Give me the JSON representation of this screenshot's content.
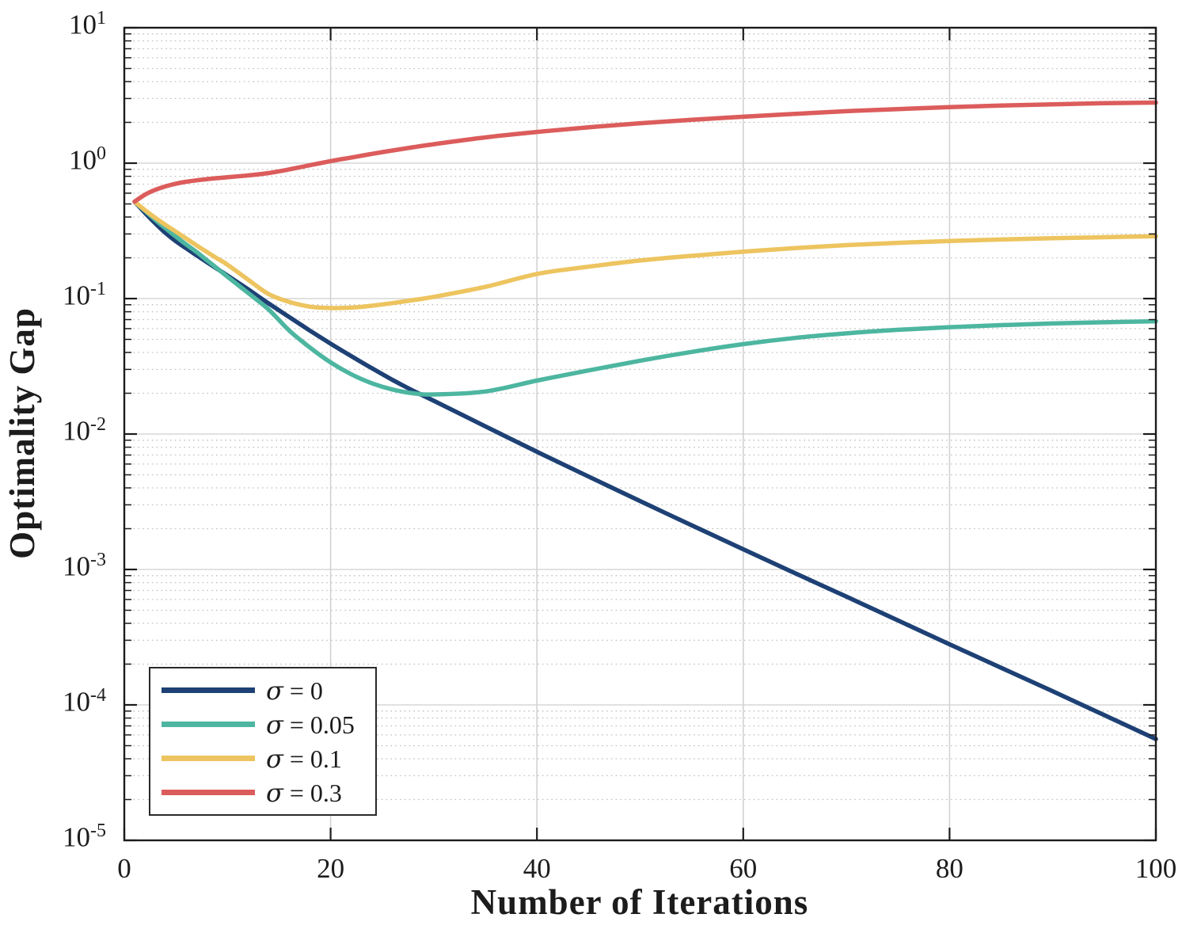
{
  "chart_data": {
    "type": "line",
    "title": "",
    "xlabel": "Number of Iterations",
    "ylabel": "Optimality Gap",
    "x_scale": "linear",
    "y_scale": "log",
    "xlim": [
      0,
      100
    ],
    "ylim": [
      1e-05,
      10
    ],
    "x_ticks": [
      0,
      20,
      40,
      60,
      80,
      100
    ],
    "x_tick_labels": [
      "0",
      "20",
      "40",
      "60",
      "80",
      "100"
    ],
    "y_tick_exponents": [
      1,
      0,
      -1,
      -2,
      -3,
      -4,
      -5
    ],
    "grid": {
      "major_horizontal": true,
      "minor_horizontal_dotted": true,
      "major_vertical": true
    },
    "legend_position": "bottom-left",
    "x": [
      1,
      2,
      3,
      4,
      5,
      6,
      7,
      8,
      9,
      10,
      12,
      14,
      16,
      18,
      20,
      22,
      24,
      26,
      28,
      30,
      35,
      40,
      45,
      50,
      55,
      60,
      65,
      70,
      75,
      80,
      85,
      90,
      95,
      100
    ],
    "series": [
      {
        "name": "σ = 0",
        "color": "#1e4175",
        "values": [
          0.52,
          0.43,
          0.36,
          0.305,
          0.265,
          0.235,
          0.209,
          0.186,
          0.166,
          0.148,
          0.117,
          0.092,
          0.073,
          0.058,
          0.0465,
          0.0376,
          0.0306,
          0.0251,
          0.0209,
          0.0176,
          0.0114,
          0.0074,
          0.00485,
          0.0032,
          0.00212,
          0.00141,
          0.00094,
          0.00063,
          0.00042,
          0.00028,
          0.000188,
          0.000126,
          8.4e-05,
          5.6e-05
        ]
      },
      {
        "name": "σ = 0.05",
        "color": "#4db6a0",
        "values": [
          0.52,
          0.445,
          0.382,
          0.33,
          0.287,
          0.251,
          0.221,
          0.192,
          0.167,
          0.145,
          0.11,
          0.083,
          0.058,
          0.0435,
          0.0338,
          0.0276,
          0.0237,
          0.0213,
          0.02,
          0.0196,
          0.0206,
          0.0248,
          0.0295,
          0.0348,
          0.0404,
          0.0461,
          0.0512,
          0.0554,
          0.0588,
          0.0615,
          0.0637,
          0.0655,
          0.0669,
          0.068
        ]
      },
      {
        "name": "σ = 0.1",
        "color": "#edc45f",
        "values": [
          0.52,
          0.45,
          0.395,
          0.35,
          0.312,
          0.278,
          0.247,
          0.221,
          0.198,
          0.178,
          0.138,
          0.108,
          0.0945,
          0.0872,
          0.0852,
          0.0858,
          0.0886,
          0.0926,
          0.0975,
          0.103,
          0.122,
          0.152,
          0.172,
          0.191,
          0.207,
          0.222,
          0.236,
          0.248,
          0.258,
          0.266,
          0.273,
          0.279,
          0.284,
          0.289
        ]
      },
      {
        "name": "σ = 0.3",
        "color": "#dc5c5c",
        "values": [
          0.52,
          0.585,
          0.635,
          0.675,
          0.706,
          0.729,
          0.747,
          0.762,
          0.775,
          0.787,
          0.812,
          0.845,
          0.9,
          0.965,
          1.035,
          1.1,
          1.17,
          1.24,
          1.31,
          1.38,
          1.55,
          1.7,
          1.84,
          1.97,
          2.09,
          2.2,
          2.31,
          2.42,
          2.51,
          2.59,
          2.66,
          2.72,
          2.77,
          2.8
        ]
      }
    ]
  }
}
